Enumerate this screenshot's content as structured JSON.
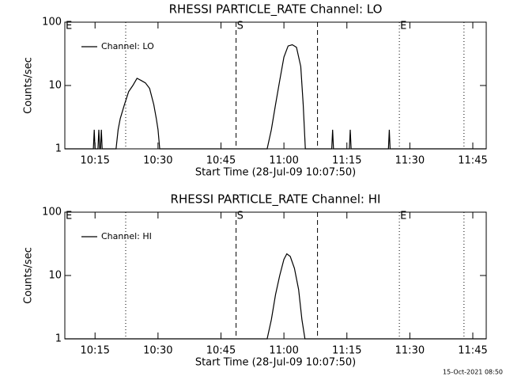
{
  "chart_data": [
    {
      "type": "line",
      "title": "RHESSI PARTICLE_RATE Channel: LO",
      "xlabel": "Start Time (28-Jul-09 10:07:50)",
      "ylabel": "Counts/sec",
      "yscale": "log",
      "xlim": [
        607.8,
        708.2
      ],
      "ylim": [
        1,
        100
      ],
      "xticks": [
        {
          "value": 615,
          "label": "10:15"
        },
        {
          "value": 630,
          "label": "10:30"
        },
        {
          "value": 645,
          "label": "10:45"
        },
        {
          "value": 660,
          "label": "11:00"
        },
        {
          "value": 675,
          "label": "11:15"
        },
        {
          "value": 690,
          "label": "11:30"
        },
        {
          "value": 705,
          "label": "11:45"
        }
      ],
      "yticks": [
        1,
        10,
        100
      ],
      "markers": [
        {
          "x": 622.3,
          "style": "dotted"
        },
        {
          "x": 648.6,
          "style": "dashed"
        },
        {
          "x": 668,
          "style": "dashed"
        },
        {
          "x": 687.5,
          "style": "dotted"
        },
        {
          "x": 702.9,
          "style": "dotted"
        }
      ],
      "annotations": [
        {
          "text": "E",
          "x": 607.8
        },
        {
          "text": "S",
          "x": 648.6
        },
        {
          "text": "E",
          "x": 687.5
        }
      ],
      "x": [
        607.8,
        614.6,
        614.8,
        615.0,
        615.7,
        615.9,
        616.1,
        616.3,
        616.5,
        616.7,
        620.0,
        620.5,
        621.0,
        622.0,
        623.0,
        624.0,
        625.0,
        626.0,
        627.0,
        628.0,
        629.0,
        629.6,
        630.0,
        630.4,
        656.0,
        657.0,
        658.0,
        659.0,
        660.0,
        661.0,
        662.0,
        663.0,
        664.0,
        664.6,
        665.1,
        671.4,
        671.6,
        671.8,
        675.6,
        675.8,
        676.0,
        684.9,
        685.1,
        685.3,
        708.2
      ],
      "series": [
        {
          "name": "Channel: LO",
          "color": "#000000",
          "values": [
            1,
            1,
            2,
            1,
            1,
            2,
            1,
            1,
            2,
            1,
            1,
            2,
            3,
            5,
            8,
            10,
            13,
            12,
            11,
            9,
            5,
            3,
            2,
            1,
            1,
            2,
            5,
            12,
            28,
            42,
            44,
            40,
            20,
            5,
            1,
            1,
            2,
            1,
            1,
            2,
            1,
            1,
            2,
            1,
            1
          ]
        }
      ]
    },
    {
      "type": "line",
      "title": "RHESSI PARTICLE_RATE Channel: HI",
      "xlabel": "Start Time (28-Jul-09 10:07:50)",
      "ylabel": "Counts/sec",
      "yscale": "log",
      "xlim": [
        607.8,
        708.2
      ],
      "ylim": [
        1,
        100
      ],
      "xticks": [
        {
          "value": 615,
          "label": "10:15"
        },
        {
          "value": 630,
          "label": "10:30"
        },
        {
          "value": 645,
          "label": "10:45"
        },
        {
          "value": 660,
          "label": "11:00"
        },
        {
          "value": 675,
          "label": "11:15"
        },
        {
          "value": 690,
          "label": "11:30"
        },
        {
          "value": 705,
          "label": "11:45"
        }
      ],
      "yticks": [
        1,
        10,
        100
      ],
      "markers": [
        {
          "x": 622.3,
          "style": "dotted"
        },
        {
          "x": 648.6,
          "style": "dashed"
        },
        {
          "x": 668,
          "style": "dashed"
        },
        {
          "x": 687.5,
          "style": "dotted"
        },
        {
          "x": 702.9,
          "style": "dotted"
        }
      ],
      "annotations": [
        {
          "text": "E",
          "x": 607.8
        },
        {
          "text": "S",
          "x": 648.6
        },
        {
          "text": "E",
          "x": 687.5
        }
      ],
      "x": [
        607.8,
        656.0,
        657.0,
        658.0,
        659.0,
        660.0,
        660.7,
        661.5,
        662.5,
        663.5,
        664.3,
        665.0,
        708.2
      ],
      "series": [
        {
          "name": "Channel: HI",
          "color": "#000000",
          "values": [
            1,
            1,
            2,
            5,
            10,
            18,
            22,
            20,
            13,
            6,
            2,
            1,
            1
          ]
        }
      ]
    }
  ],
  "footer": "15-Oct-2021 08:50"
}
